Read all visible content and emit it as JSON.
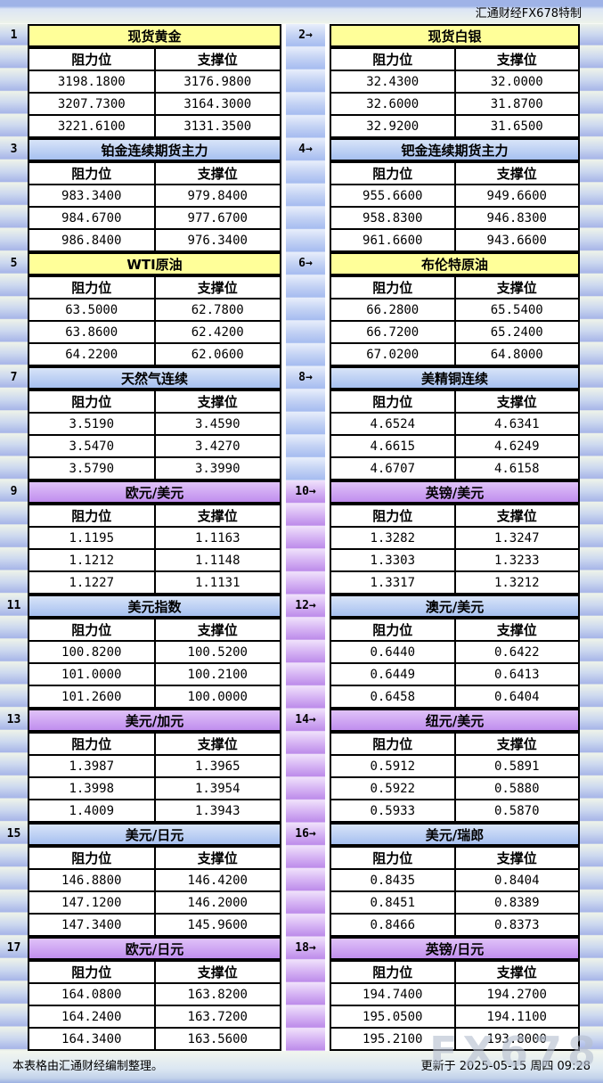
{
  "header": {
    "brand_title": "汇通财经FX678特制"
  },
  "footer": {
    "credit": "本表格由汇通财经编制整理。",
    "updated": "更新于 2025-05-15 周四 09:28"
  },
  "watermark": "FX678",
  "colors": {
    "yellow_header": "#ffff99",
    "blue_header": "#aec6f0",
    "purple_header": "#cc99f0",
    "band_blue": "#a7b5e8",
    "gutter_purple": "#bd8cea"
  },
  "chart_data": [
    {
      "type": "table",
      "no": "1",
      "title": "现货黄金",
      "columns": [
        "阻力位",
        "支撑位"
      ],
      "rows": [
        [
          "3198.1800",
          "3176.9800"
        ],
        [
          "3207.7300",
          "3164.3000"
        ],
        [
          "3221.6100",
          "3131.3500"
        ]
      ]
    },
    {
      "type": "table",
      "no": "2→",
      "title": "现货白银",
      "columns": [
        "阻力位",
        "支撑位"
      ],
      "rows": [
        [
          "32.4300",
          "32.0000"
        ],
        [
          "32.6000",
          "31.8700"
        ],
        [
          "32.9200",
          "31.6500"
        ]
      ]
    },
    {
      "type": "table",
      "no": "3",
      "title": "铂金连续期货主力",
      "columns": [
        "阻力位",
        "支撑位"
      ],
      "rows": [
        [
          "983.3400",
          "979.8400"
        ],
        [
          "984.6700",
          "977.6700"
        ],
        [
          "986.8400",
          "976.3400"
        ]
      ]
    },
    {
      "type": "table",
      "no": "4→",
      "title": "钯金连续期货主力",
      "columns": [
        "阻力位",
        "支撑位"
      ],
      "rows": [
        [
          "955.6600",
          "949.6600"
        ],
        [
          "958.8300",
          "946.8300"
        ],
        [
          "961.6600",
          "943.6600"
        ]
      ]
    },
    {
      "type": "table",
      "no": "5",
      "title": "WTI原油",
      "columns": [
        "阻力位",
        "支撑位"
      ],
      "rows": [
        [
          "63.5000",
          "62.7800"
        ],
        [
          "63.8600",
          "62.4200"
        ],
        [
          "64.2200",
          "62.0600"
        ]
      ]
    },
    {
      "type": "table",
      "no": "6→",
      "title": "布伦特原油",
      "columns": [
        "阻力位",
        "支撑位"
      ],
      "rows": [
        [
          "66.2800",
          "65.5400"
        ],
        [
          "66.7200",
          "65.2400"
        ],
        [
          "67.0200",
          "64.8000"
        ]
      ]
    },
    {
      "type": "table",
      "no": "7",
      "title": "天然气连续",
      "columns": [
        "阻力位",
        "支撑位"
      ],
      "rows": [
        [
          "3.5190",
          "3.4590"
        ],
        [
          "3.5470",
          "3.4270"
        ],
        [
          "3.5790",
          "3.3990"
        ]
      ]
    },
    {
      "type": "table",
      "no": "8→",
      "title": "美精铜连续",
      "columns": [
        "阻力位",
        "支撑位"
      ],
      "rows": [
        [
          "4.6524",
          "4.6341"
        ],
        [
          "4.6615",
          "4.6249"
        ],
        [
          "4.6707",
          "4.6158"
        ]
      ]
    },
    {
      "type": "table",
      "no": "9",
      "title": "欧元/美元",
      "columns": [
        "阻力位",
        "支撑位"
      ],
      "rows": [
        [
          "1.1195",
          "1.1163"
        ],
        [
          "1.1212",
          "1.1148"
        ],
        [
          "1.1227",
          "1.1131"
        ]
      ]
    },
    {
      "type": "table",
      "no": "10→",
      "title": "英镑/美元",
      "columns": [
        "阻力位",
        "支撑位"
      ],
      "rows": [
        [
          "1.3282",
          "1.3247"
        ],
        [
          "1.3303",
          "1.3233"
        ],
        [
          "1.3317",
          "1.3212"
        ]
      ]
    },
    {
      "type": "table",
      "no": "11",
      "title": "美元指数",
      "columns": [
        "阻力位",
        "支撑位"
      ],
      "rows": [
        [
          "100.8200",
          "100.5200"
        ],
        [
          "101.0000",
          "100.2100"
        ],
        [
          "101.2600",
          "100.0000"
        ]
      ]
    },
    {
      "type": "table",
      "no": "12→",
      "title": "澳元/美元",
      "columns": [
        "阻力位",
        "支撑位"
      ],
      "rows": [
        [
          "0.6440",
          "0.6422"
        ],
        [
          "0.6449",
          "0.6413"
        ],
        [
          "0.6458",
          "0.6404"
        ]
      ]
    },
    {
      "type": "table",
      "no": "13",
      "title": "美元/加元",
      "columns": [
        "阻力位",
        "支撑位"
      ],
      "rows": [
        [
          "1.3987",
          "1.3965"
        ],
        [
          "1.3998",
          "1.3954"
        ],
        [
          "1.4009",
          "1.3943"
        ]
      ]
    },
    {
      "type": "table",
      "no": "14→",
      "title": "纽元/美元",
      "columns": [
        "阻力位",
        "支撑位"
      ],
      "rows": [
        [
          "0.5912",
          "0.5891"
        ],
        [
          "0.5922",
          "0.5880"
        ],
        [
          "0.5933",
          "0.5870"
        ]
      ]
    },
    {
      "type": "table",
      "no": "15",
      "title": "美元/日元",
      "columns": [
        "阻力位",
        "支撑位"
      ],
      "rows": [
        [
          "146.8800",
          "146.4200"
        ],
        [
          "147.1200",
          "146.2000"
        ],
        [
          "147.3400",
          "145.9600"
        ]
      ]
    },
    {
      "type": "table",
      "no": "16→",
      "title": "美元/瑞郎",
      "columns": [
        "阻力位",
        "支撑位"
      ],
      "rows": [
        [
          "0.8435",
          "0.8404"
        ],
        [
          "0.8451",
          "0.8389"
        ],
        [
          "0.8466",
          "0.8373"
        ]
      ]
    },
    {
      "type": "table",
      "no": "17",
      "title": "欧元/日元",
      "columns": [
        "阻力位",
        "支撑位"
      ],
      "rows": [
        [
          "164.0800",
          "163.8200"
        ],
        [
          "164.2400",
          "163.7200"
        ],
        [
          "164.3400",
          "163.5600"
        ]
      ]
    },
    {
      "type": "table",
      "no": "18→",
      "title": "英镑/日元",
      "columns": [
        "阻力位",
        "支撑位"
      ],
      "rows": [
        [
          "194.7400",
          "194.2700"
        ],
        [
          "195.0500",
          "194.1100"
        ],
        [
          "195.2100",
          "193.8000"
        ]
      ]
    }
  ]
}
